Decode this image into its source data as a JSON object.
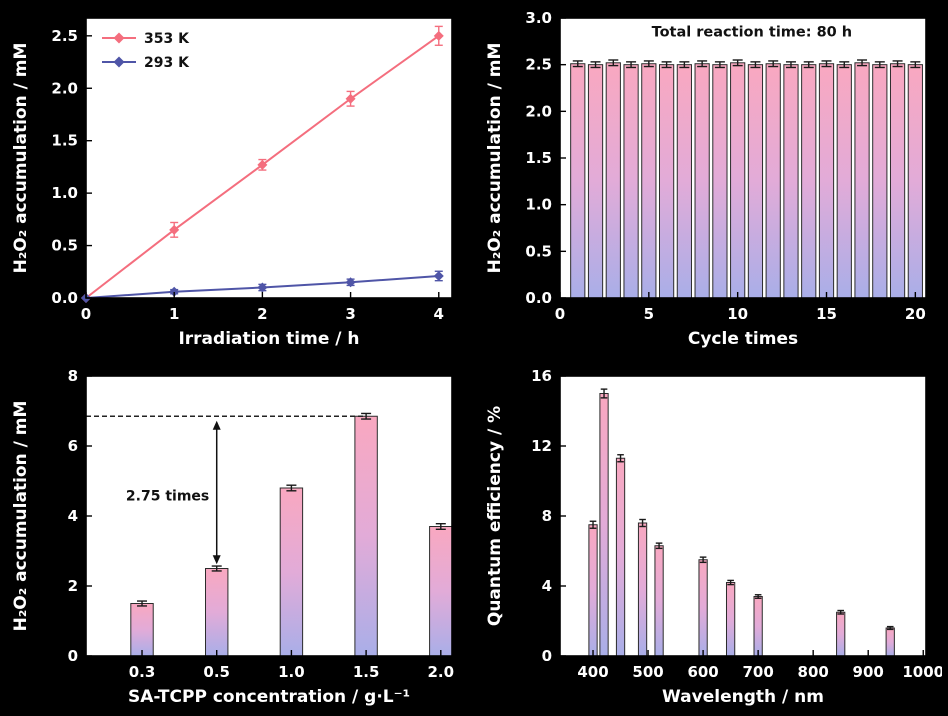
{
  "page": {
    "background": "#000000"
  },
  "style": {
    "plot_bg": "#ffffff",
    "text_color": "#ffffff",
    "bar_gradient_top": "#f9a8c0",
    "bar_gradient_mid": "#e2abd8",
    "bar_gradient_bottom": "#a9aee8",
    "bar_outline": "#2b2b2b"
  },
  "chart_data": [
    {
      "id": "irradiation-line-chart",
      "type": "line",
      "xlabel": "Irradiation time / h",
      "ylabel": "H₂O₂ accumulation / mM",
      "xlim": [
        0,
        4.15
      ],
      "ylim": [
        0,
        2.67
      ],
      "xticks": [
        0,
        1,
        2,
        3,
        4
      ],
      "xtick_labels": [
        "0",
        "1",
        "2",
        "3",
        "4"
      ],
      "yticks": [
        0,
        0.5,
        1,
        1.5,
        2,
        2.5
      ],
      "ytick_labels": [
        "0.0",
        "0.5",
        "1.0",
        "1.5",
        "2.0",
        "2.5"
      ],
      "legend": {
        "position": "top-left"
      },
      "series": [
        {
          "name": "353 K",
          "color": "#f46e7e",
          "x": [
            0,
            1,
            2,
            3,
            4
          ],
          "y": [
            0,
            0.65,
            1.27,
            1.9,
            2.5
          ],
          "yerr": [
            0,
            0.07,
            0.05,
            0.07,
            0.09
          ]
        },
        {
          "name": "293 K",
          "color": "#4f55a7",
          "x": [
            0,
            1,
            2,
            3,
            4
          ],
          "y": [
            0,
            0.06,
            0.1,
            0.15,
            0.21
          ],
          "yerr": [
            0,
            0.02,
            0.03,
            0.03,
            0.045
          ]
        }
      ]
    },
    {
      "id": "cycle-bar-chart",
      "type": "bar",
      "xlabel": "Cycle times",
      "ylabel": "H₂O₂ accumulation / mM",
      "xlim": [
        0,
        20.6
      ],
      "ylim": [
        0,
        3
      ],
      "xticks": [
        0,
        5,
        10,
        15,
        20
      ],
      "xtick_labels": [
        "0",
        "5",
        "10",
        "15",
        "20"
      ],
      "yticks": [
        0,
        0.5,
        1,
        1.5,
        2,
        2.5,
        3
      ],
      "ytick_labels": [
        "0.0",
        "0.5",
        "1.0",
        "1.5",
        "2.0",
        "2.5",
        "3.0"
      ],
      "bars": {
        "x": [
          1,
          2,
          3,
          4,
          5,
          6,
          7,
          8,
          9,
          10,
          11,
          12,
          13,
          14,
          15,
          16,
          17,
          18,
          19,
          20
        ],
        "values": [
          2.51,
          2.5,
          2.52,
          2.5,
          2.51,
          2.5,
          2.5,
          2.51,
          2.5,
          2.52,
          2.5,
          2.51,
          2.5,
          2.5,
          2.51,
          2.5,
          2.52,
          2.5,
          2.51,
          2.5
        ],
        "yerr": [
          0.03,
          0.03,
          0.03,
          0.03,
          0.03,
          0.03,
          0.03,
          0.03,
          0.03,
          0.03,
          0.03,
          0.03,
          0.03,
          0.03,
          0.03,
          0.03,
          0.03,
          0.03,
          0.03,
          0.03
        ],
        "width": 0.8
      },
      "annotations": [
        {
          "type": "text",
          "x": 10.8,
          "y": 2.8,
          "text": "Total reaction time: 80 h",
          "color": "#111111",
          "size": 14.5,
          "anchor": "middle"
        }
      ]
    },
    {
      "id": "concentration-bar-chart",
      "type": "bar",
      "xlabel": "SA-TCPP concentration / g·L⁻¹",
      "ylabel": "H₂O₂ accumulation / mM",
      "xlim": [
        0.25,
        5.15
      ],
      "ylim": [
        0,
        8
      ],
      "xticks": [
        1,
        2,
        3,
        4,
        5
      ],
      "xtick_labels": [
        "0.3",
        "0.5",
        "1.0",
        "1.5",
        "2.0"
      ],
      "yticks": [
        0,
        2,
        4,
        6,
        8
      ],
      "ytick_labels": [
        "0",
        "2",
        "4",
        "6",
        "8"
      ],
      "bars": {
        "x": [
          1,
          2,
          3,
          4,
          5
        ],
        "values": [
          1.5,
          2.5,
          4.8,
          6.85,
          3.7
        ],
        "yerr": [
          0.07,
          0.07,
          0.08,
          0.08,
          0.08
        ],
        "width": 0.3
      },
      "annotations": [
        {
          "type": "hline-dashed",
          "y": 6.85,
          "x1": 0.25,
          "x2": 4.0,
          "color": "#222222"
        },
        {
          "type": "varrow",
          "x": 2,
          "y1": 2.62,
          "y2": 6.72,
          "color": "#111111"
        },
        {
          "type": "text",
          "x": 1.9,
          "y": 4.45,
          "text": "2.75 times",
          "color": "#111111",
          "size": 14,
          "anchor": "end"
        }
      ]
    },
    {
      "id": "wavelength-bar-chart",
      "type": "bar",
      "xlabel": "Wavelength / nm",
      "ylabel": "Quantum efficiency / %",
      "xlim": [
        340,
        1005
      ],
      "ylim": [
        0,
        16
      ],
      "xticks": [
        400,
        500,
        600,
        700,
        800,
        900,
        1000
      ],
      "xtick_labels": [
        "400",
        "500",
        "600",
        "700",
        "800",
        "900",
        "1000"
      ],
      "yticks": [
        0,
        4,
        8,
        12,
        16
      ],
      "ytick_labels": [
        "0",
        "4",
        "8",
        "12",
        "16"
      ],
      "bars": {
        "x": [
          400,
          420,
          450,
          490,
          520,
          600,
          650,
          700,
          850,
          940
        ],
        "values": [
          7.5,
          15,
          11.3,
          7.6,
          6.3,
          5.5,
          4.2,
          3.4,
          2.5,
          1.6
        ],
        "yerr": [
          0.2,
          0.25,
          0.2,
          0.2,
          0.15,
          0.15,
          0.12,
          0.1,
          0.1,
          0.08
        ],
        "width": 15
      }
    }
  ]
}
